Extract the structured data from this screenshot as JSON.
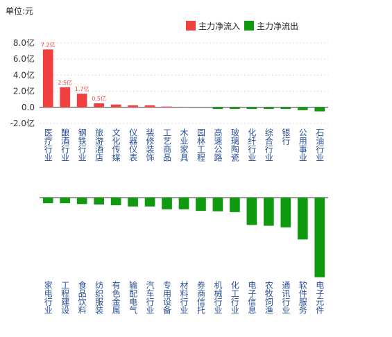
{
  "unit_label": "单位:元",
  "legend": [
    {
      "name": "主力净流入",
      "color": "#f04040"
    },
    {
      "name": "主力净流出",
      "color": "#109a10"
    }
  ],
  "chart_data": [
    {
      "type": "bar",
      "categories": [
        "医疗行业",
        "酿酒行业",
        "钢铁行业",
        "旅游酒店",
        "文化传媒",
        "仪器仪表",
        "装修装饰",
        "工艺商品",
        "木业家具",
        "园林工程",
        "高速公路",
        "玻璃陶瓷",
        "化纤行业",
        "综合行业",
        "银行",
        "公用事业",
        "石油行业"
      ],
      "values": [
        7.2,
        2.5,
        1.7,
        0.5,
        0.35,
        0.25,
        0.25,
        0.1,
        0.02,
        0,
        -0.2,
        -0.2,
        -0.2,
        -0.2,
        -0.2,
        -0.35,
        -0.5
      ],
      "value_labels": [
        "7.2亿",
        "2.5亿",
        "1.7亿",
        "0.5亿",
        null,
        null,
        null,
        null,
        null,
        null,
        null,
        null,
        null,
        null,
        null,
        null,
        null
      ],
      "ylim": [
        -2,
        8
      ],
      "yticks": [
        {
          "value": -2,
          "label": "-2.0亿"
        },
        {
          "value": 0,
          "label": "0.0"
        },
        {
          "value": 2,
          "label": "2.0亿"
        },
        {
          "value": 4,
          "label": "4.0亿"
        },
        {
          "value": 6,
          "label": "6.0亿"
        },
        {
          "value": 8,
          "label": "8.0亿"
        }
      ],
      "grid": true
    },
    {
      "type": "bar",
      "categories": [
        "家电行业",
        "工程建设",
        "食品饮料",
        "纺织服装",
        "有色金属",
        "输配电气",
        "汽车行业",
        "专用设备",
        "材料行业",
        "券商信托",
        "机械行业",
        "化工行业",
        "电子信息",
        "农牧饲渔",
        "通讯行业",
        "软件服务",
        "电子元件"
      ],
      "values": [
        -0.7,
        -0.7,
        -0.8,
        -0.85,
        -0.95,
        -1.1,
        -1.1,
        -1.45,
        -1.45,
        -1.65,
        -1.7,
        -1.8,
        -3.4,
        -3.5,
        -3.7,
        -5.2,
        -9.9
      ],
      "ylim": [
        -10,
        0
      ]
    }
  ]
}
